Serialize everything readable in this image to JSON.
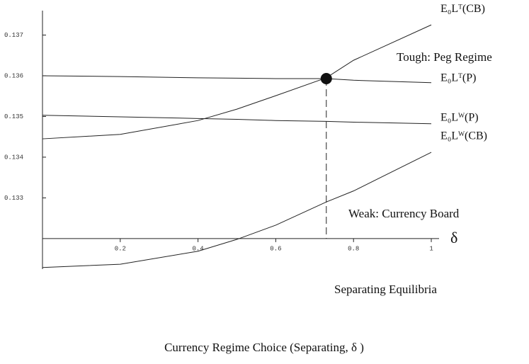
{
  "chart_data": {
    "type": "line",
    "title": "Currency Regime Choice (Separating,  δ )",
    "x_label": "δ",
    "annotations": [
      "Tough: Peg Regime",
      "Weak: Currency Board",
      "Separating Equilibria"
    ],
    "xlim": [
      0,
      1.02
    ],
    "ylim": [
      0.13125,
      0.1376
    ],
    "xticks": [
      0.2,
      0.4,
      0.6,
      0.8,
      1
    ],
    "yticks": [
      0.133,
      0.134,
      0.135,
      0.136,
      0.137
    ],
    "x_axis_at": 0.132,
    "color": "#222222",
    "x": [
      0,
      0.2,
      0.4,
      0.5,
      0.6,
      0.73,
      0.8,
      1
    ],
    "series": [
      {
        "name": "E₀Lᵀ(CB)",
        "values": [
          0.13445,
          0.13456,
          0.1349,
          0.13518,
          0.13551,
          0.13595,
          0.13638,
          0.13725
        ]
      },
      {
        "name": "E₀Lᵀ(P)",
        "values": [
          0.136,
          0.13598,
          0.13595,
          0.13594,
          0.13593,
          0.13593,
          0.13589,
          0.13583
        ]
      },
      {
        "name": "E₀Lᵂ(P)",
        "values": [
          0.13503,
          0.13499,
          0.13495,
          0.13493,
          0.1349,
          0.13488,
          0.13486,
          0.13482
        ]
      },
      {
        "name": "E₀Lᵂ(CB)",
        "values": [
          0.13129,
          0.13137,
          0.13169,
          0.13198,
          0.13233,
          0.1329,
          0.13317,
          0.13412
        ]
      }
    ],
    "equilibrium": {
      "x": 0.73,
      "y": 0.13593
    }
  }
}
